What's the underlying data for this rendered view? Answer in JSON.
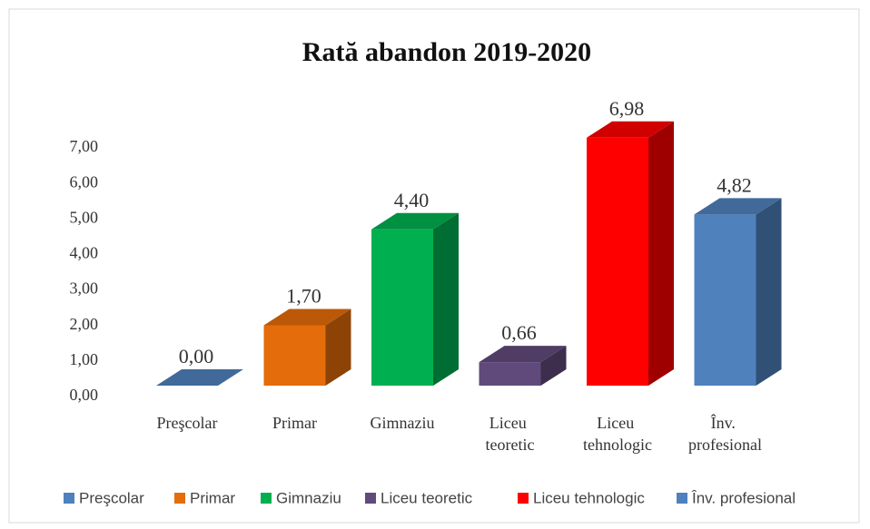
{
  "chart_data": {
    "type": "bar3d",
    "title": "Rată abandon 2019-2020",
    "categories": [
      "Preşcolar",
      "Primar",
      "Gimnaziu",
      "Liceu teoretic",
      "Liceu tehnologic",
      "Înv. profesional"
    ],
    "values": [
      0,
      1.7,
      4.4,
      0.66,
      6.98,
      4.82
    ],
    "value_labels": [
      "0,00",
      "1,70",
      "4,40",
      "0,66",
      "6,98",
      "4,82"
    ],
    "colors": [
      "#4f81bd",
      "#e46c0a",
      "#00b050",
      "#604a7b",
      "#ff0000",
      "#4f81bd"
    ],
    "ylim": [
      0,
      7
    ],
    "yticks": [
      {
        "value": 0,
        "label": "0,00"
      },
      {
        "value": 1,
        "label": "1,00"
      },
      {
        "value": 2,
        "label": "2,00"
      },
      {
        "value": 3,
        "label": "3,00"
      },
      {
        "value": 4,
        "label": "4,00"
      },
      {
        "value": 5,
        "label": "5,00"
      },
      {
        "value": 6,
        "label": "6,00"
      },
      {
        "value": 7,
        "label": "7,00"
      }
    ],
    "legend": "bottom"
  }
}
